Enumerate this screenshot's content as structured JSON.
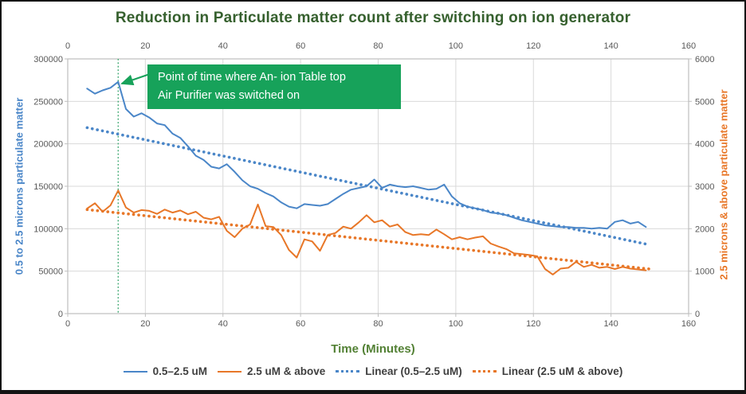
{
  "chart_data": {
    "type": "line",
    "title": "Reduction in Particulate matter count after switching on ion generator",
    "x_axis": {
      "label": "Time (Minutes)",
      "min": 0,
      "max": 160,
      "ticks": [
        0,
        20,
        40,
        60,
        80,
        100,
        120,
        140,
        160
      ],
      "ticks_shown_top_and_bottom": true
    },
    "y_left": {
      "label": "0.5 to 2.5 microns particulate matter",
      "min": 0,
      "max": 300000,
      "ticks": [
        0,
        50000,
        100000,
        150000,
        200000,
        250000,
        300000
      ]
    },
    "y_right": {
      "label": "2.5 microns & above particulate matter",
      "min": 0,
      "max": 6000,
      "ticks": [
        0,
        1000,
        2000,
        3000,
        4000,
        5000,
        6000
      ]
    },
    "grid": "both",
    "x": [
      5,
      7,
      9,
      11,
      13,
      15,
      17,
      19,
      21,
      23,
      25,
      27,
      29,
      31,
      33,
      35,
      37,
      39,
      41,
      43,
      45,
      47,
      49,
      51,
      53,
      55,
      57,
      59,
      61,
      63,
      65,
      67,
      69,
      71,
      73,
      75,
      77,
      79,
      81,
      83,
      85,
      87,
      89,
      91,
      93,
      95,
      97,
      99,
      101,
      103,
      105,
      107,
      109,
      111,
      113,
      115,
      117,
      119,
      121,
      123,
      125,
      127,
      129,
      131,
      133,
      135,
      137,
      139,
      141,
      143,
      145,
      147,
      149
    ],
    "series": [
      {
        "name": "0.5–2.5 uM",
        "axis": "left",
        "style": "solid",
        "color": "#4a86c8",
        "values": [
          265000,
          259000,
          263000,
          266000,
          273000,
          241000,
          232000,
          236000,
          231000,
          224000,
          222000,
          212000,
          207000,
          197000,
          186000,
          181000,
          173000,
          171000,
          176000,
          167000,
          157000,
          150000,
          147000,
          142000,
          138000,
          131000,
          126000,
          124000,
          129000,
          128000,
          127000,
          129000,
          135000,
          141000,
          146000,
          148000,
          150000,
          158000,
          148000,
          152000,
          150000,
          149000,
          150000,
          148000,
          146000,
          147000,
          152000,
          138000,
          130000,
          126000,
          124000,
          122000,
          119000,
          118000,
          116000,
          113000,
          110000,
          108000,
          106000,
          104000,
          103000,
          102000,
          102000,
          101000,
          101000,
          100000,
          101000,
          100000,
          108000,
          110000,
          106000,
          108000,
          102000
        ]
      },
      {
        "name": "2.5 uM & above",
        "axis": "right",
        "style": "solid",
        "color": "#e87728",
        "values": [
          2475,
          2600,
          2400,
          2550,
          2900,
          2500,
          2380,
          2440,
          2420,
          2350,
          2450,
          2380,
          2430,
          2340,
          2400,
          2260,
          2220,
          2280,
          1950,
          1800,
          2000,
          2100,
          2570,
          2060,
          2040,
          1850,
          1500,
          1320,
          1750,
          1700,
          1480,
          1850,
          1900,
          2050,
          2000,
          2150,
          2320,
          2150,
          2200,
          2050,
          2100,
          1920,
          1850,
          1870,
          1850,
          1980,
          1870,
          1750,
          1800,
          1750,
          1790,
          1820,
          1650,
          1580,
          1520,
          1420,
          1400,
          1380,
          1350,
          1050,
          920,
          1060,
          1080,
          1220,
          1100,
          1150,
          1080,
          1100,
          1050,
          1100,
          1060,
          1040,
          1020
        ]
      },
      {
        "name": "Linear (0.5–2.5 uM)",
        "axis": "left",
        "style": "dotted",
        "color": "#4a86c8",
        "trend": {
          "x": [
            5,
            150
          ],
          "values": [
            219000,
            81000
          ]
        }
      },
      {
        "name": "Linear (2.5 uM & above)",
        "axis": "right",
        "style": "dotted",
        "color": "#e87728",
        "trend": {
          "x": [
            5,
            150
          ],
          "values": [
            2450,
            1050
          ]
        }
      }
    ],
    "legend": [
      "0.5–2.5 uM",
      "2.5 uM & above",
      "Linear (0.5–2.5 uM)",
      "Linear (2.5 uM & above)"
    ],
    "legend_position": "bottom",
    "annotation": {
      "line1": "Point of time where An- ion Table top",
      "line2": "Air Purifier was switched on",
      "marker_x": 13
    },
    "colors": {
      "title_green": "#36602e",
      "axis_title_green": "#538135",
      "blue_series": "#4a86c8",
      "orange_series": "#e87728",
      "annotation_green": "#17a25a",
      "marker_line_green": "#3fa871",
      "gridline": "#d9d9d9",
      "axis_line": "#bfbfbf",
      "tick_text": "#595959",
      "legend_text": "#3f3f3f"
    }
  }
}
